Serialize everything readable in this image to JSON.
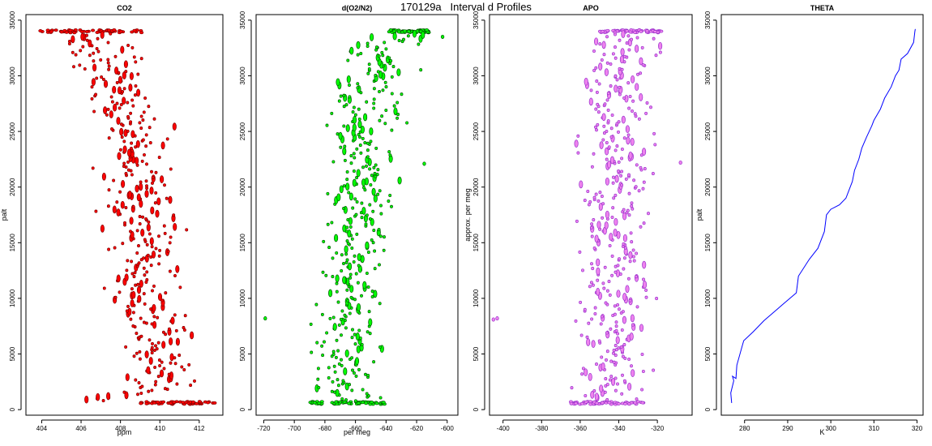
{
  "page": {
    "title": "170129a   Interval d Profiles"
  },
  "chart_data": [
    {
      "id": "co2",
      "type": "scatter",
      "title": "CO2",
      "xlabel": "ppm",
      "ylabel": "palt",
      "xlim": [
        403.2,
        413.2
      ],
      "ylim": [
        -500,
        35500
      ],
      "xticks": [
        404,
        406,
        408,
        410,
        412
      ],
      "yticks": [
        0,
        5000,
        10000,
        15000,
        20000,
        25000,
        30000,
        35000
      ],
      "marker_color": "#ff0000",
      "edge_color": "#800000",
      "curve": [
        [
          406.0,
          600
        ],
        [
          409.8,
          2000
        ],
        [
          410.3,
          4000
        ],
        [
          409.6,
          6000
        ],
        [
          409.4,
          8000
        ],
        [
          409.1,
          10000
        ],
        [
          409.0,
          12000
        ],
        [
          409.2,
          14000
        ],
        [
          409.4,
          16000
        ],
        [
          408.9,
          18000
        ],
        [
          408.6,
          20000
        ],
        [
          408.9,
          22000
        ],
        [
          408.7,
          24000
        ],
        [
          408.5,
          26000
        ],
        [
          407.9,
          28000
        ],
        [
          407.7,
          30000
        ],
        [
          407.2,
          32000
        ],
        [
          406.3,
          33500
        ],
        [
          405.8,
          34100
        ]
      ],
      "bands": [
        {
          "y": 600,
          "x_from": 409.0,
          "x_to": 412.8
        },
        {
          "y": 34000,
          "x_from": 403.8,
          "x_to": 409.2
        }
      ],
      "spread": 2.6
    },
    {
      "id": "o2n2",
      "type": "scatter",
      "title": "d(O2/N2)",
      "xlabel": "per meg",
      "ylabel": "",
      "xlim": [
        -725,
        -593
      ],
      "ylim": [
        -500,
        35500
      ],
      "xticks": [
        -720,
        -700,
        -680,
        -660,
        -640,
        -620,
        -600
      ],
      "yticks": [
        0,
        5000,
        10000,
        15000,
        20000,
        25000,
        30000,
        35000
      ],
      "marker_color": "#00ff00",
      "edge_color": "#005500",
      "curve": [
        [
          -665,
          600
        ],
        [
          -670,
          2000
        ],
        [
          -668,
          4000
        ],
        [
          -670,
          6000
        ],
        [
          -664,
          8000
        ],
        [
          -662,
          10000
        ],
        [
          -662,
          12000
        ],
        [
          -658,
          14000
        ],
        [
          -660,
          16000
        ],
        [
          -656,
          18000
        ],
        [
          -660,
          20000
        ],
        [
          -652,
          22000
        ],
        [
          -654,
          24000
        ],
        [
          -652,
          26000
        ],
        [
          -654,
          28000
        ],
        [
          -646,
          30000
        ],
        [
          -644,
          32000
        ],
        [
          -636,
          33500
        ],
        [
          -625,
          34100
        ]
      ],
      "bands": [
        {
          "y": 600,
          "x_from": -690,
          "x_to": -640
        },
        {
          "y": 34000,
          "x_from": -638,
          "x_to": -612
        }
      ],
      "spread": 32,
      "outliers": [
        [
          -719,
          8200
        ],
        [
          -603,
          33500
        ],
        [
          -615,
          22100
        ]
      ]
    },
    {
      "id": "apo",
      "type": "scatter",
      "title": "APO",
      "xlabel": "",
      "ylabel": "approx. per meg",
      "xlim": [
        -407,
        -302
      ],
      "ylim": [
        -500,
        35500
      ],
      "xticks": [
        -400,
        -380,
        -360,
        -340,
        -320
      ],
      "yticks": [
        0,
        5000,
        10000,
        15000,
        20000,
        25000,
        30000,
        35000
      ],
      "marker_color": "#ee82ee",
      "edge_color": "#9932cc",
      "curve": [
        [
          -345,
          600
        ],
        [
          -346,
          2000
        ],
        [
          -343,
          4000
        ],
        [
          -346,
          6000
        ],
        [
          -342,
          8000
        ],
        [
          -341,
          10000
        ],
        [
          -344,
          12000
        ],
        [
          -341,
          14000
        ],
        [
          -343,
          16000
        ],
        [
          -340,
          18000
        ],
        [
          -341,
          20000
        ],
        [
          -339,
          22000
        ],
        [
          -342,
          24000
        ],
        [
          -340,
          26000
        ],
        [
          -342,
          28000
        ],
        [
          -341,
          30000
        ],
        [
          -339,
          32000
        ],
        [
          -336,
          33500
        ],
        [
          -333,
          34100
        ]
      ],
      "bands": [
        {
          "y": 600,
          "x_from": -366,
          "x_to": -326
        },
        {
          "y": 34000,
          "x_from": -350,
          "x_to": -318
        }
      ],
      "spread": 26,
      "outliers": [
        [
          -403,
          8200
        ],
        [
          -405,
          8100
        ],
        [
          -308,
          22200
        ]
      ]
    },
    {
      "id": "theta",
      "type": "line",
      "title": "THETA",
      "xlabel": "K",
      "ylabel": "palt",
      "xlim": [
        274.6,
        321.4
      ],
      "ylim": [
        -500,
        35500
      ],
      "xticks": [
        280,
        290,
        300,
        310,
        320
      ],
      "yticks": [
        0,
        5000,
        10000,
        15000,
        20000,
        25000,
        30000,
        35000
      ],
      "line_color": "#0000ff",
      "x": [
        277.0,
        276.8,
        277.5,
        277.2,
        278.0,
        278.2,
        279.5,
        279.8,
        282.0,
        284.5,
        286.0,
        289.0,
        292.0,
        292.5,
        295.0,
        297.0,
        298.5,
        299.0,
        300.0,
        302.0,
        303.5,
        305.0,
        305.5,
        306.5,
        307.2,
        308.3,
        309.5,
        310.0,
        311.5,
        312.5,
        314.0,
        315.0,
        315.8,
        316.3,
        317.8,
        319.2,
        319.5,
        319.6
      ],
      "y": [
        600,
        1500,
        2600,
        3000,
        2800,
        4000,
        5800,
        6200,
        7000,
        8000,
        8500,
        9500,
        10500,
        12000,
        13500,
        14500,
        16000,
        17500,
        18000,
        18400,
        19000,
        20500,
        21500,
        22500,
        23500,
        24500,
        25500,
        26000,
        27000,
        28000,
        29000,
        30000,
        30500,
        31500,
        32000,
        33000,
        34000,
        34200
      ]
    }
  ]
}
